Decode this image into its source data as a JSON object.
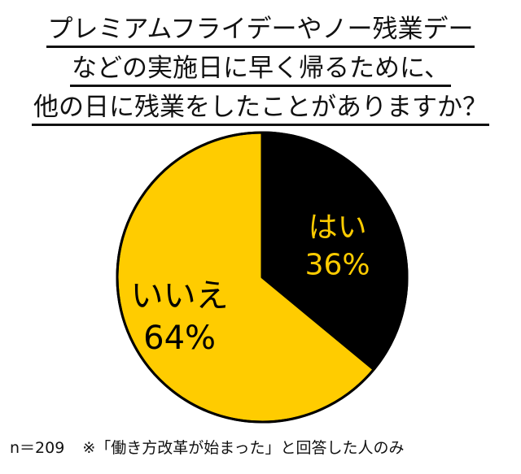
{
  "title_lines": [
    "プレミアムフライデーやノー残業デー",
    "などの実施日に早く帰るために、",
    "他の日に残業をしたことがありますか？"
  ],
  "footer": {
    "n": "n＝209",
    "note": "※「働き方改革が始まった」と回答した人のみ"
  },
  "colors": {
    "yes": "#000000",
    "no": "#ffcc00",
    "yes_label": "#ffcc00",
    "no_label": "#000000",
    "outline": "#000000"
  },
  "chart_data": {
    "type": "pie",
    "slices": [
      {
        "label": "はい",
        "value": 36,
        "value_label": "36%"
      },
      {
        "label": "いいえ",
        "value": 64,
        "value_label": "64%"
      }
    ],
    "start": "12 o'clock",
    "direction": "clockwise"
  }
}
